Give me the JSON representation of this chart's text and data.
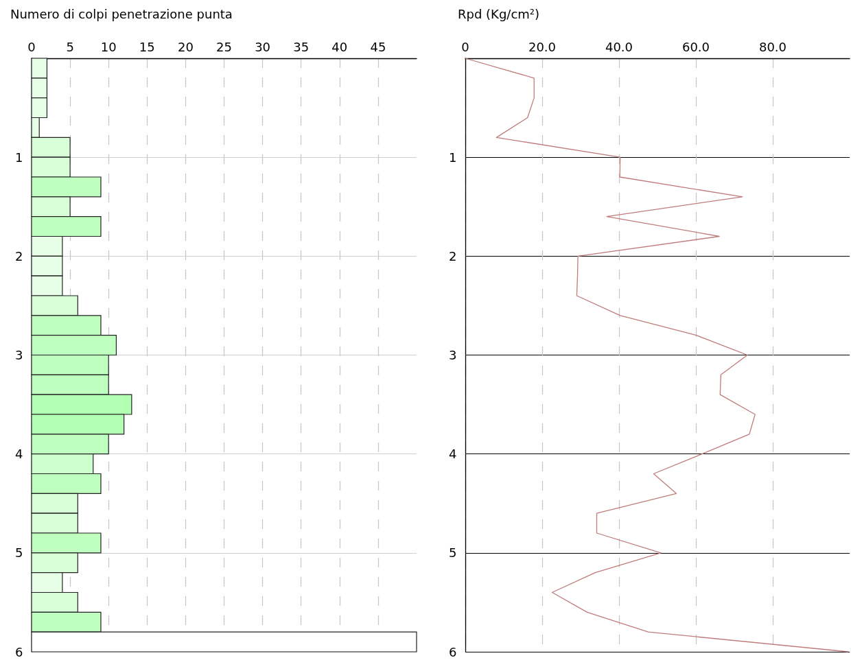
{
  "chart_data": [
    {
      "type": "histogram",
      "title": "Numero di colpi penetrazione punta",
      "orientation": "horizontal",
      "bins": [
        0,
        0.2,
        0.4,
        0.6,
        0.8,
        1.0,
        1.2,
        1.4,
        1.6,
        1.8,
        2.0,
        2.2,
        2.4,
        2.6,
        2.8,
        3.0,
        3.2,
        3.4,
        3.6,
        3.8,
        4.0,
        4.2,
        4.4,
        4.6,
        4.8,
        5.0,
        5.2,
        5.4,
        5.6,
        5.8,
        6.0
      ],
      "values": [
        2,
        2,
        2,
        1,
        5,
        5,
        9,
        5,
        9,
        4,
        4,
        4,
        6,
        9,
        11,
        10,
        10,
        13,
        12,
        10,
        8,
        9,
        6,
        6,
        9,
        6,
        4,
        6,
        9,
        50
      ],
      "colors": [
        "#e6ffe6",
        "#e6ffe6",
        "#e6ffe6",
        "#e6ffe6",
        "#d9ffd9",
        "#d9ffd9",
        "#bfffbf",
        "#d9ffd9",
        "#bfffbf",
        "#e6ffe6",
        "#e6ffe6",
        "#e6ffe6",
        "#d9ffd9",
        "#bfffbf",
        "#bfffbf",
        "#bfffbf",
        "#bfffbf",
        "#b3ffb3",
        "#b3ffb3",
        "#bfffbf",
        "#ccffcc",
        "#bfffbf",
        "#d9ffd9",
        "#d9ffd9",
        "#bfffbf",
        "#d9ffd9",
        "#e6ffe6",
        "#d9ffd9",
        "#bfffbf",
        "#ffffff"
      ],
      "xlim": [
        0,
        50
      ],
      "xticks": [
        0,
        5,
        10,
        15,
        20,
        25,
        30,
        35,
        40,
        45
      ],
      "ylim": [
        6,
        0
      ],
      "yticks": [
        1,
        2,
        3,
        4,
        5,
        6
      ],
      "grid": true
    },
    {
      "type": "line",
      "title": "Rpd (Kg/cm²)",
      "x": [
        0,
        17.9,
        17.9,
        16.2,
        8.1,
        40.3,
        40.2,
        72.1,
        36.8,
        66.1,
        29.3,
        29.2,
        29.0,
        40.3,
        60.1,
        73.4,
        66.5,
        66.3,
        75.4,
        73.9,
        61.6,
        49.0,
        54.9,
        34.2,
        34.2,
        50.9,
        33.8,
        22.6,
        31.7,
        47.6,
        99.6
      ],
      "values": [
        0,
        0.2,
        0.4,
        0.6,
        0.8,
        1.0,
        1.2,
        1.4,
        1.6,
        1.8,
        2.0,
        2.2,
        2.4,
        2.6,
        2.8,
        3.0,
        3.2,
        3.4,
        3.6,
        3.8,
        4.0,
        4.2,
        4.4,
        4.6,
        4.8,
        5.0,
        5.2,
        5.4,
        5.6,
        5.8,
        6.0
      ],
      "color": "#c07b7b",
      "marker": "none",
      "line_style": "solid",
      "xlim": [
        0,
        100
      ],
      "xticks": [
        {
          "value": 0,
          "label": "0"
        },
        {
          "value": 20,
          "label": "20.0"
        },
        {
          "value": 40,
          "label": "40.0"
        },
        {
          "value": 60,
          "label": "60.0"
        },
        {
          "value": 80,
          "label": "80.0"
        }
      ],
      "ylim": [
        6,
        0
      ],
      "yticks": [
        1,
        2,
        3,
        4,
        5,
        6
      ],
      "grid": true
    }
  ]
}
